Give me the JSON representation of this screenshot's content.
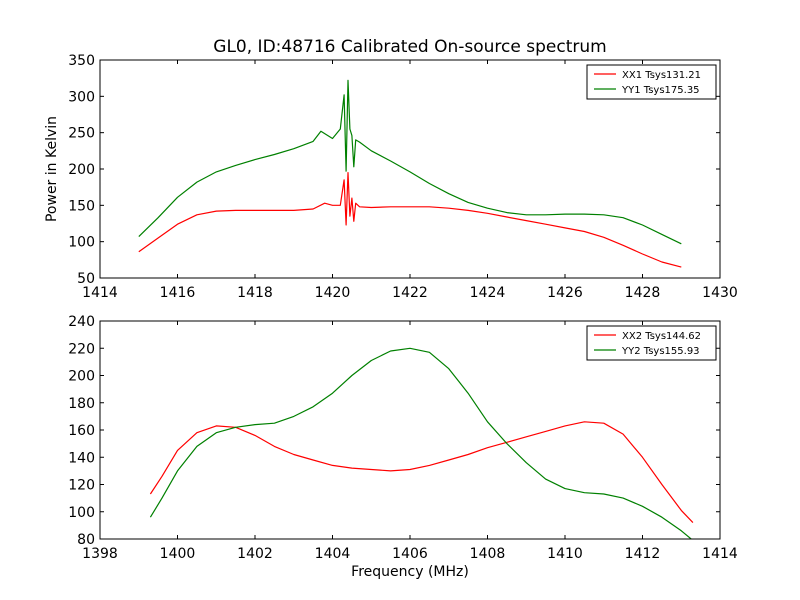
{
  "figure": {
    "title": "GL0, ID:48716 Calibrated On-source spectrum",
    "xlabel": "Frequency (MHz)",
    "ylabel_top": "Power in Kelvin"
  },
  "chart_data": [
    {
      "type": "line",
      "title": "GL0, ID:48716 Calibrated On-source spectrum",
      "xlabel": "",
      "ylabel": "Power in Kelvin",
      "xlim": [
        1414,
        1430
      ],
      "ylim": [
        50,
        350
      ],
      "xticks": [
        1414,
        1416,
        1418,
        1420,
        1422,
        1424,
        1426,
        1428,
        1430
      ],
      "yticks": [
        50,
        100,
        150,
        200,
        250,
        300,
        350
      ],
      "legend": "top-right",
      "grid": false,
      "series": [
        {
          "name": "XX1 Tsys131.21",
          "color": "#ff0000",
          "x": [
            1415.0,
            1415.5,
            1416.0,
            1416.5,
            1417.0,
            1417.5,
            1418.0,
            1418.5,
            1419.0,
            1419.5,
            1419.8,
            1420.0,
            1420.2,
            1420.3,
            1420.35,
            1420.4,
            1420.45,
            1420.5,
            1420.55,
            1420.6,
            1420.7,
            1421.0,
            1421.5,
            1422.0,
            1422.5,
            1423.0,
            1423.5,
            1424.0,
            1424.5,
            1425.0,
            1425.5,
            1426.0,
            1426.5,
            1427.0,
            1427.5,
            1428.0,
            1428.5,
            1429.0
          ],
          "values": [
            86,
            105,
            124,
            137,
            142,
            143,
            143,
            143,
            143,
            145,
            153,
            150,
            150,
            185,
            123,
            195,
            135,
            160,
            128,
            153,
            148,
            147,
            148,
            148,
            148,
            146,
            143,
            139,
            134,
            129,
            124,
            119,
            114,
            106,
            95,
            83,
            72,
            65
          ]
        },
        {
          "name": "YY1 Tsys175.35",
          "color": "#008000",
          "x": [
            1415.0,
            1415.5,
            1416.0,
            1416.5,
            1417.0,
            1417.5,
            1418.0,
            1418.5,
            1419.0,
            1419.5,
            1419.7,
            1420.0,
            1420.2,
            1420.3,
            1420.35,
            1420.4,
            1420.45,
            1420.5,
            1420.55,
            1420.6,
            1420.7,
            1421.0,
            1421.5,
            1422.0,
            1422.5,
            1423.0,
            1423.5,
            1424.0,
            1424.5,
            1425.0,
            1425.5,
            1426.0,
            1426.5,
            1427.0,
            1427.5,
            1428.0,
            1428.5,
            1429.0
          ],
          "values": [
            107,
            133,
            161,
            182,
            196,
            205,
            213,
            220,
            228,
            238,
            252,
            242,
            255,
            302,
            197,
            322,
            255,
            246,
            203,
            240,
            237,
            225,
            211,
            196,
            180,
            166,
            154,
            146,
            140,
            137,
            137,
            138,
            138,
            137,
            133,
            123,
            110,
            97
          ]
        }
      ]
    },
    {
      "type": "line",
      "title": "",
      "xlabel": "Frequency (MHz)",
      "ylabel": "",
      "xlim": [
        1398,
        1414
      ],
      "ylim": [
        80,
        240
      ],
      "xticks": [
        1398,
        1400,
        1402,
        1404,
        1406,
        1408,
        1410,
        1412,
        1414
      ],
      "yticks": [
        80,
        100,
        120,
        140,
        160,
        180,
        200,
        220,
        240
      ],
      "legend": "top-right",
      "grid": false,
      "series": [
        {
          "name": "XX2 Tsys144.62",
          "color": "#ff0000",
          "x": [
            1399.3,
            1399.6,
            1400.0,
            1400.5,
            1401.0,
            1401.5,
            1402.0,
            1402.5,
            1403.0,
            1403.5,
            1404.0,
            1404.5,
            1405.0,
            1405.5,
            1406.0,
            1406.5,
            1407.0,
            1407.5,
            1408.0,
            1408.5,
            1409.0,
            1409.5,
            1410.0,
            1410.5,
            1411.0,
            1411.5,
            1412.0,
            1412.5,
            1413.0,
            1413.3
          ],
          "values": [
            113,
            126,
            145,
            158,
            163,
            162,
            156,
            148,
            142,
            138,
            134,
            132,
            131,
            130,
            131,
            134,
            138,
            142,
            147,
            151,
            155,
            159,
            163,
            166,
            165,
            157,
            140,
            120,
            101,
            92
          ]
        },
        {
          "name": "YY2 Tsys155.93",
          "color": "#008000",
          "x": [
            1399.3,
            1399.6,
            1400.0,
            1400.5,
            1401.0,
            1401.5,
            1402.0,
            1402.5,
            1403.0,
            1403.5,
            1404.0,
            1404.5,
            1405.0,
            1405.5,
            1406.0,
            1406.5,
            1407.0,
            1407.5,
            1408.0,
            1408.5,
            1409.0,
            1409.5,
            1410.0,
            1410.5,
            1411.0,
            1411.5,
            1412.0,
            1412.5,
            1413.0,
            1413.3
          ],
          "values": [
            96,
            110,
            130,
            148,
            158,
            162,
            164,
            165,
            170,
            177,
            187,
            200,
            211,
            218,
            220,
            217,
            205,
            187,
            166,
            150,
            136,
            124,
            117,
            114,
            113,
            110,
            104,
            96,
            86,
            79
          ]
        }
      ]
    }
  ]
}
